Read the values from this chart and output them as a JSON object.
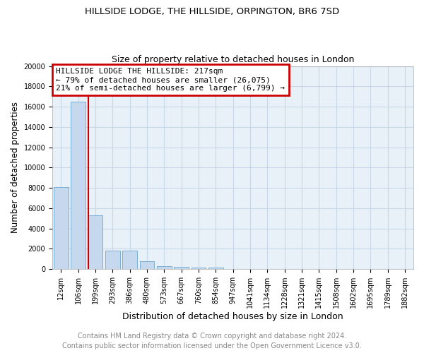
{
  "title1": "HILLSIDE LODGE, THE HILLSIDE, ORPINGTON, BR6 7SD",
  "title2": "Size of property relative to detached houses in London",
  "xlabel": "Distribution of detached houses by size in London",
  "ylabel": "Number of detached properties",
  "categories": [
    "12sqm",
    "106sqm",
    "199sqm",
    "293sqm",
    "386sqm",
    "480sqm",
    "573sqm",
    "667sqm",
    "760sqm",
    "854sqm",
    "947sqm",
    "1041sqm",
    "1134sqm",
    "1228sqm",
    "1321sqm",
    "1415sqm",
    "1508sqm",
    "1602sqm",
    "1695sqm",
    "1789sqm",
    "1882sqm"
  ],
  "values": [
    8100,
    16500,
    5300,
    1850,
    1850,
    750,
    300,
    200,
    150,
    130,
    0,
    0,
    0,
    0,
    0,
    0,
    0,
    0,
    0,
    0,
    0
  ],
  "bar_color": "#c5d8ee",
  "bar_edge_color": "#7aafd4",
  "vline_color": "#cc0000",
  "annotation_title": "HILLSIDE LODGE THE HILLSIDE: 217sqm",
  "annotation_line1": "← 79% of detached houses are smaller (26,075)",
  "annotation_line2": "21% of semi-detached houses are larger (6,799) →",
  "annotation_box_color": "#ffffff",
  "annotation_box_edge_color": "#cc0000",
  "ylim": [
    0,
    20000
  ],
  "yticks": [
    0,
    2000,
    4000,
    6000,
    8000,
    10000,
    12000,
    14000,
    16000,
    18000,
    20000
  ],
  "footer1": "Contains HM Land Registry data © Crown copyright and database right 2024.",
  "footer2": "Contains public sector information licensed under the Open Government Licence v3.0.",
  "fig_bg_color": "#ffffff",
  "plot_bg_color": "#e8f0f8",
  "grid_color": "#c8d8e8",
  "title1_fontsize": 9.5,
  "title2_fontsize": 9,
  "xlabel_fontsize": 9,
  "ylabel_fontsize": 8.5,
  "tick_fontsize": 7,
  "footer_fontsize": 7,
  "annot_fontsize": 8
}
